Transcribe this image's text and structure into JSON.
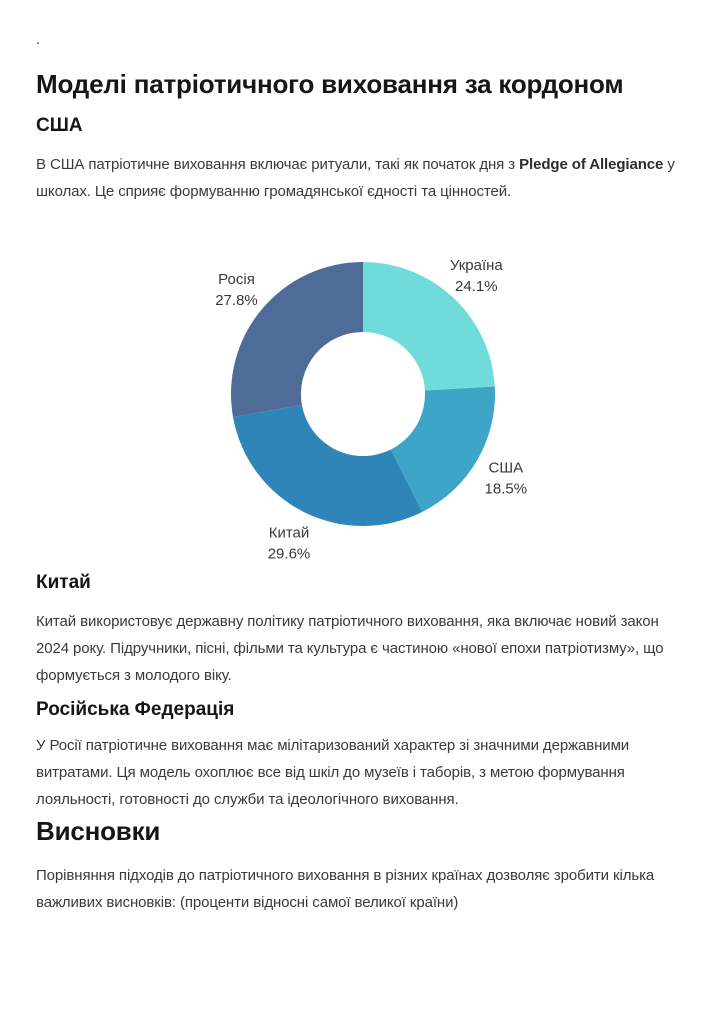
{
  "page": {
    "leading_dot": ".",
    "title": "Моделі патріотичного виховання за кордоном"
  },
  "sections": {
    "usa": {
      "heading": "США",
      "text_before": "В США патріотичне виховання включає ритуали, такі як початок дня з ",
      "bold_text": "Pledge of Allegiance",
      "text_after": " у школах. Це сприяє формуванню громадянської єдності та цінностей."
    },
    "china": {
      "heading": "Китай",
      "text": "Китай використовує державну політику патріотичного виховання, яка включає новий закон 2024 року. Підручники, пісні, фільми та культура є частиною «нової епохи патріотизму», що формується з молодого віку."
    },
    "russia": {
      "heading": "Російська Федерація",
      "text": "У Росії патріотичне виховання має мілітаризований характер зі значними державними витратами. Ця модель охоплює все від шкіл до музеїв і таборів, з метою формування лояльності, готовності до служби та ідеологічного виховання."
    },
    "conclusions": {
      "heading": "Висновки",
      "text": "Порівняння підходів до патріотичного виховання в різних країнах дозволяє зробити кілька важливих висновків: (проценти відносні самої великої країни)"
    }
  },
  "chart_data": {
    "type": "pie",
    "subtype": "donut",
    "title": "",
    "slices": [
      {
        "label": "Україна",
        "value": 24.1,
        "color": "#6FDCDB"
      },
      {
        "label": "США",
        "value": 18.5,
        "color": "#3EA5C9"
      },
      {
        "label": "Китай",
        "value": 29.6,
        "color": "#2E86B8"
      },
      {
        "label": "Росія",
        "value": 27.8,
        "color": "#4F6C99"
      }
    ],
    "start_angle": "12-oclock",
    "direction": "clockwise",
    "inner_radius_ratio": 0.47,
    "label_radius_ratio": 1.25,
    "value_suffix": "%",
    "label_color": "#3a3a3a",
    "legend": "none"
  }
}
